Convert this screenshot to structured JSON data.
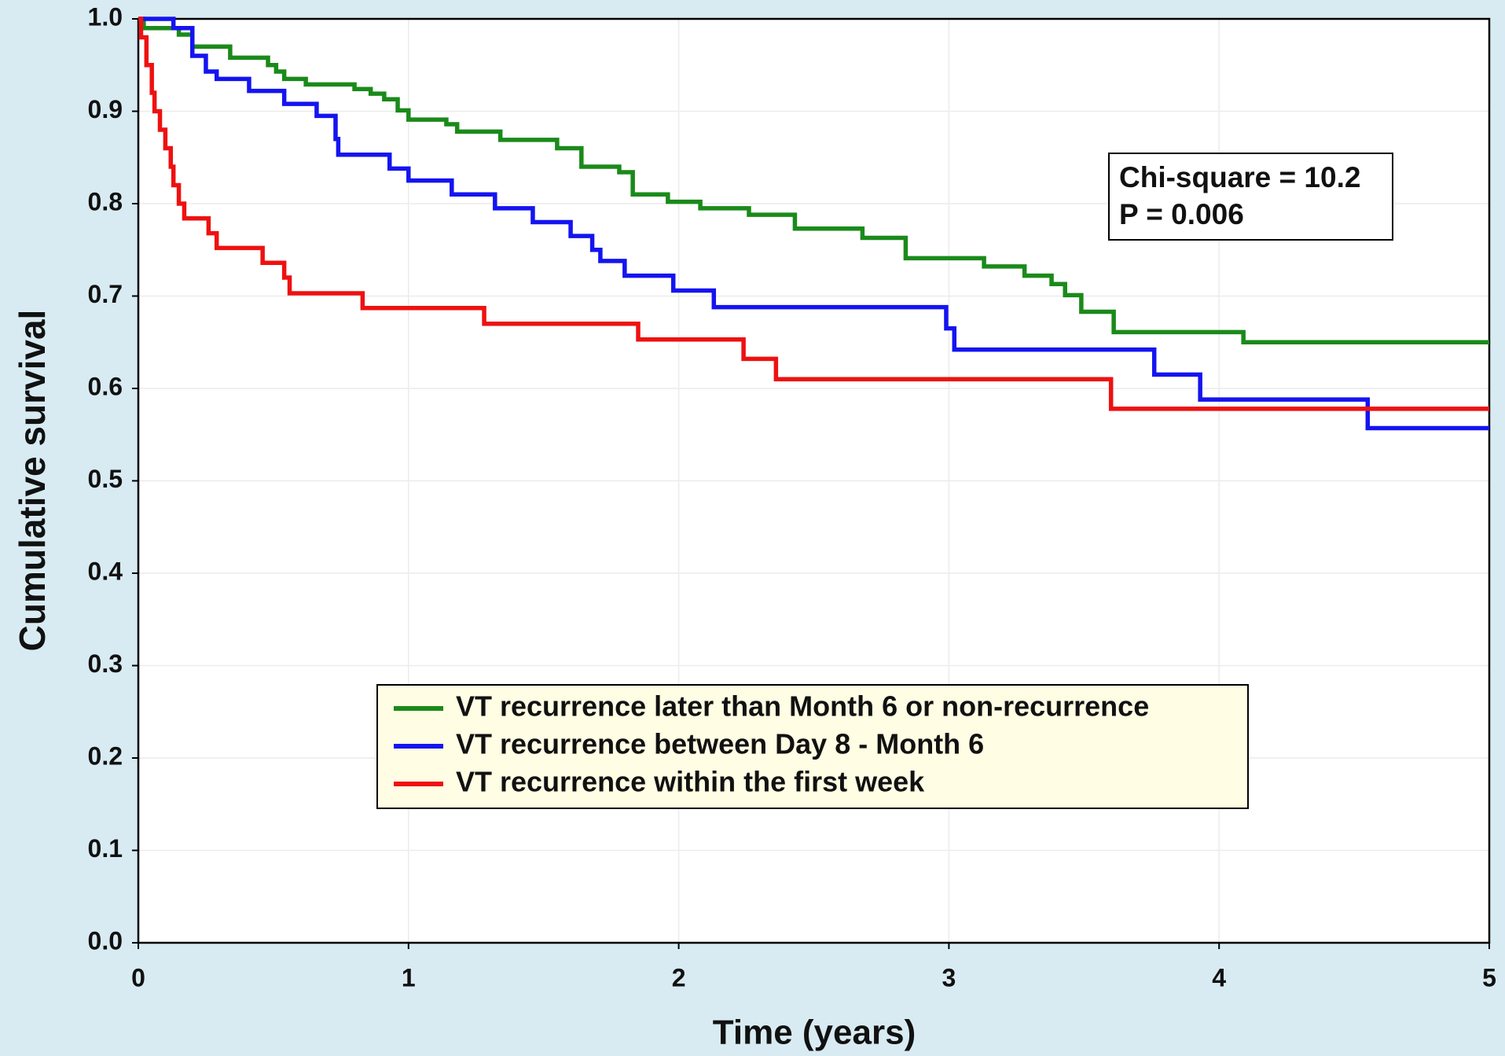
{
  "chart_data": {
    "type": "line",
    "step": "post",
    "xlabel": "Time (years)",
    "ylabel": "Cumulative survival",
    "xlim": [
      0,
      5
    ],
    "xticks": [
      0,
      1,
      2,
      3,
      4,
      5
    ],
    "ylim": [
      0,
      1
    ],
    "yticks": [
      {
        "value": 0,
        "label": "0.0"
      },
      0.1,
      0.2,
      0.3,
      0.4,
      0.5,
      0.6,
      0.7,
      0.8,
      0.9,
      {
        "value": 1,
        "label": "1.0"
      }
    ],
    "grid": true,
    "legend": "lower center",
    "annotations": [
      "Chi-square = 10.2",
      "P = 0.006"
    ],
    "series": [
      {
        "name": "VT recurrence later than Month 6 or non-recurrence",
        "color": "#1a8a1a",
        "x": [
          0,
          0.02,
          0.15,
          0.2,
          0.34,
          0.48,
          0.51,
          0.54,
          0.62,
          0.8,
          0.86,
          0.91,
          0.96,
          1.0,
          1.14,
          1.18,
          1.34,
          1.55,
          1.64,
          1.78,
          1.83,
          1.96,
          2.08,
          2.26,
          2.43,
          2.68,
          2.84,
          3.13,
          3.28,
          3.38,
          3.43,
          3.49,
          3.61,
          4.09,
          5.0
        ],
        "values": [
          1.0,
          0.99,
          0.983,
          0.97,
          0.958,
          0.95,
          0.943,
          0.935,
          0.929,
          0.924,
          0.919,
          0.913,
          0.901,
          0.891,
          0.886,
          0.878,
          0.869,
          0.86,
          0.84,
          0.834,
          0.81,
          0.802,
          0.795,
          0.788,
          0.773,
          0.763,
          0.741,
          0.732,
          0.722,
          0.713,
          0.701,
          0.683,
          0.661,
          0.65,
          0.65
        ]
      },
      {
        "name": "VT recurrence between Day 8 - Month 6",
        "color": "#1414f0",
        "x": [
          0,
          0.13,
          0.2,
          0.25,
          0.29,
          0.41,
          0.54,
          0.66,
          0.73,
          0.74,
          0.93,
          1.0,
          1.16,
          1.32,
          1.46,
          1.6,
          1.68,
          1.71,
          1.8,
          1.98,
          2.13,
          2.99,
          3.02,
          3.76,
          3.93,
          4.55,
          5.0
        ],
        "values": [
          1.0,
          0.99,
          0.96,
          0.943,
          0.935,
          0.922,
          0.908,
          0.895,
          0.87,
          0.853,
          0.838,
          0.825,
          0.81,
          0.795,
          0.78,
          0.765,
          0.75,
          0.738,
          0.722,
          0.706,
          0.688,
          0.665,
          0.642,
          0.615,
          0.588,
          0.557,
          0.557
        ]
      },
      {
        "name": "VT recurrence within the first week",
        "color": "#ee1111",
        "x": [
          0,
          0.01,
          0.03,
          0.05,
          0.06,
          0.08,
          0.1,
          0.12,
          0.13,
          0.15,
          0.17,
          0.26,
          0.29,
          0.46,
          0.54,
          0.56,
          0.83,
          1.28,
          1.85,
          2.24,
          2.36,
          3.6,
          5.0
        ],
        "values": [
          1.0,
          0.98,
          0.95,
          0.92,
          0.9,
          0.88,
          0.86,
          0.84,
          0.82,
          0.8,
          0.784,
          0.768,
          0.752,
          0.736,
          0.72,
          0.703,
          0.687,
          0.67,
          0.653,
          0.632,
          0.61,
          0.578,
          0.578
        ]
      }
    ]
  }
}
